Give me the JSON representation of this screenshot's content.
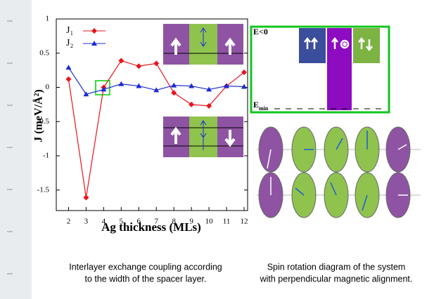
{
  "chart_data": {
    "type": "line",
    "x_label": "Ag thickness (MLs)",
    "y_label": "J (meV/Å²)",
    "x": [
      2,
      3,
      4,
      5,
      6,
      7,
      8,
      9,
      10,
      11,
      12
    ],
    "series": [
      {
        "name": "J₁",
        "color": "#e8141c",
        "marker": "diamond",
        "values": [
          0.12,
          -1.61,
          0,
          0.39,
          0.31,
          0.35,
          -0.08,
          -0.25,
          -0.27,
          0.02,
          0.22
        ]
      },
      {
        "name": "J₂",
        "color": "#1a2bd6",
        "marker": "triangle",
        "values": [
          0.29,
          -0.1,
          -0.03,
          0.05,
          0.02,
          -0.04,
          0.03,
          0.02,
          -0.03,
          0.02,
          0.01
        ]
      }
    ],
    "xlim": [
      1.3,
      12.2
    ],
    "ylim": [
      -1.8,
      1
    ],
    "xticks": [
      2,
      3,
      4,
      5,
      6,
      7,
      8,
      9,
      10,
      11,
      12
    ],
    "yticks": [
      -1.5,
      -1,
      -0.5,
      0,
      0.5,
      1
    ],
    "legend": "top-left"
  },
  "diagram": {
    "energy_top": "E<0",
    "energy_min": {
      "symbol": "E",
      "subscript": "min"
    }
  },
  "captions": {
    "left": [
      "Interlayer exchange coupling according",
      "to the width of the spacer layer."
    ],
    "right": [
      "Spin rotation diagram of the system",
      "with perpendicular magnetic alignment."
    ]
  }
}
